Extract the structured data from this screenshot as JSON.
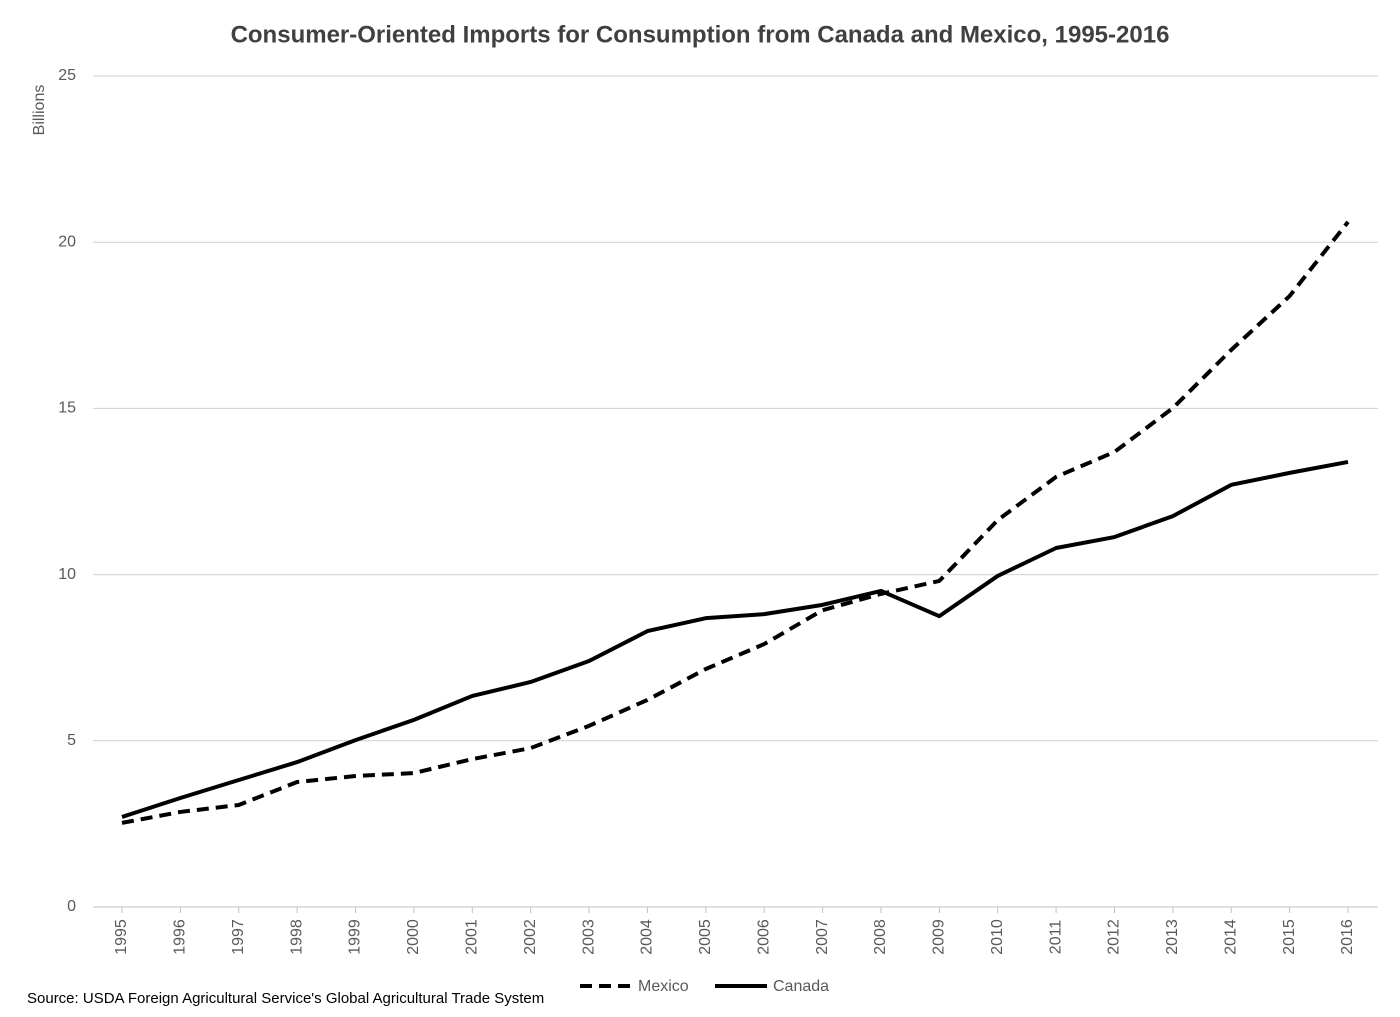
{
  "chart_data": {
    "type": "line",
    "title": "Consumer-Oriented Imports for Consumption from Canada and Mexico, 1995-2016",
    "y_label": "Billions",
    "source": "Source: USDA Foreign Agricultural Service's Global Agricultural Trade System",
    "categories": [
      "1995",
      "1996",
      "1997",
      "1998",
      "1999",
      "2000",
      "2001",
      "2002",
      "2003",
      "2004",
      "2005",
      "2006",
      "2007",
      "2008",
      "2009",
      "2010",
      "2011",
      "2012",
      "2013",
      "2014",
      "2015",
      "2016"
    ],
    "series": [
      {
        "name": "Mexico",
        "color": "#000000",
        "dashed": true,
        "values": [
          2.53,
          2.86,
          3.07,
          3.76,
          3.94,
          4.03,
          4.45,
          4.78,
          5.45,
          6.23,
          7.16,
          7.91,
          8.93,
          9.42,
          9.81,
          11.64,
          12.94,
          13.69,
          15.01,
          16.76,
          18.38,
          20.61
        ]
      },
      {
        "name": "Canada",
        "color": "#000000",
        "dashed": false,
        "values": [
          2.71,
          3.28,
          3.82,
          4.36,
          5.02,
          5.63,
          6.35,
          6.77,
          7.4,
          8.3,
          8.69,
          8.81,
          9.09,
          9.51,
          8.75,
          9.96,
          10.8,
          11.13,
          11.76,
          12.7,
          13.06,
          13.39
        ]
      }
    ],
    "ylim": [
      0,
      25
    ],
    "yticks": [
      0,
      5,
      10,
      15,
      20,
      25
    ],
    "grid": true,
    "legend": "bottom"
  }
}
